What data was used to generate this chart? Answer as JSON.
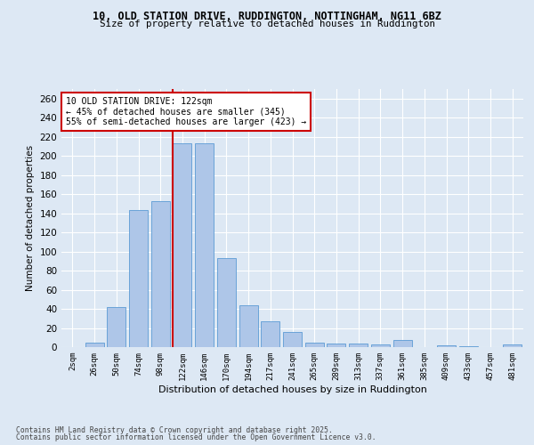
{
  "title1": "10, OLD STATION DRIVE, RUDDINGTON, NOTTINGHAM, NG11 6BZ",
  "title2": "Size of property relative to detached houses in Ruddington",
  "xlabel": "Distribution of detached houses by size in Ruddington",
  "ylabel": "Number of detached properties",
  "categories": [
    "2sqm",
    "26sqm",
    "50sqm",
    "74sqm",
    "98sqm",
    "122sqm",
    "146sqm",
    "170sqm",
    "194sqm",
    "217sqm",
    "241sqm",
    "265sqm",
    "289sqm",
    "313sqm",
    "337sqm",
    "361sqm",
    "385sqm",
    "409sqm",
    "433sqm",
    "457sqm",
    "481sqm"
  ],
  "values": [
    0,
    5,
    42,
    143,
    153,
    213,
    213,
    93,
    44,
    27,
    16,
    5,
    4,
    4,
    3,
    7,
    0,
    2,
    1,
    0,
    3
  ],
  "bar_color": "#aec6e8",
  "bar_edge_color": "#5b9bd5",
  "highlight_line_color": "#cc0000",
  "highlight_bar_index": 5,
  "ylim": [
    0,
    270
  ],
  "yticks": [
    0,
    20,
    40,
    60,
    80,
    100,
    120,
    140,
    160,
    180,
    200,
    220,
    240,
    260
  ],
  "annotation_title": "10 OLD STATION DRIVE: 122sqm",
  "annotation_line1": "← 45% of detached houses are smaller (345)",
  "annotation_line2": "55% of semi-detached houses are larger (423) →",
  "annotation_box_color": "#ffffff",
  "annotation_box_edge": "#cc0000",
  "footer1": "Contains HM Land Registry data © Crown copyright and database right 2025.",
  "footer2": "Contains public sector information licensed under the Open Government Licence v3.0.",
  "bg_color": "#dde8f4",
  "plot_bg_color": "#dde8f4"
}
